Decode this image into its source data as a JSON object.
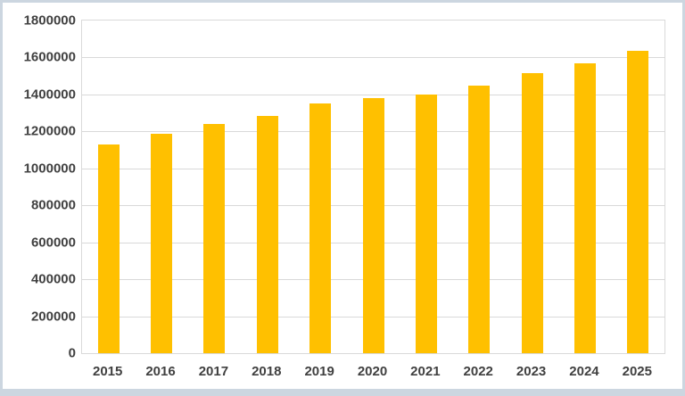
{
  "frame": {
    "border_color": "#ccd6e0",
    "background_color": "#ffffff"
  },
  "chart_data": {
    "type": "bar",
    "title": "",
    "xlabel": "",
    "ylabel": "",
    "categories": [
      "2015",
      "2016",
      "2017",
      "2018",
      "2019",
      "2020",
      "2021",
      "2022",
      "2023",
      "2024",
      "2025"
    ],
    "values": [
      1130000,
      1185000,
      1240000,
      1285000,
      1350000,
      1380000,
      1400000,
      1450000,
      1515000,
      1570000,
      1635000
    ],
    "ylim": [
      0,
      1800000
    ],
    "ytick_step": 200000,
    "ytick_labels": [
      "0",
      "200000",
      "400000",
      "600000",
      "800000",
      "1000000",
      "1200000",
      "1400000",
      "1600000",
      "1800000"
    ],
    "grid": true,
    "legend_position": "none",
    "bar_color": "#FFC000",
    "gridline_color": "#d9d9d9",
    "axis_text_color": "#404040"
  }
}
